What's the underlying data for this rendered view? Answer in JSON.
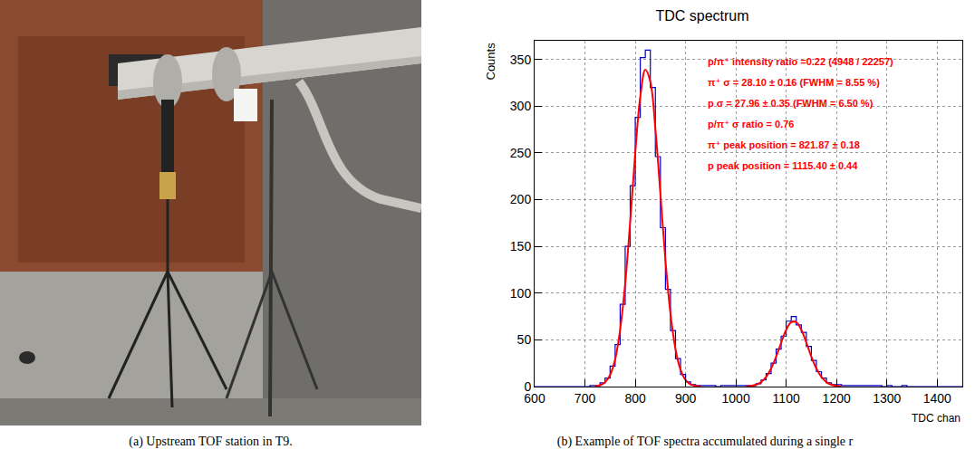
{
  "captions": [
    "(a) Upstream TOF station in T9.",
    "(b) Example of TOF spectra accumulated during a single r"
  ],
  "chart_data": {
    "type": "histogram",
    "title": "TDC spectrum",
    "x_label": "TDC chan",
    "y_label": "Counts",
    "bins": [
      600,
      610,
      620,
      630,
      640,
      650,
      660,
      670,
      680,
      690,
      700,
      710,
      720,
      730,
      740,
      750,
      760,
      770,
      780,
      790,
      800,
      810,
      820,
      830,
      840,
      850,
      860,
      870,
      880,
      890,
      900,
      910,
      920,
      930,
      940,
      950,
      960,
      970,
      980,
      990,
      1000,
      1010,
      1020,
      1030,
      1040,
      1050,
      1060,
      1070,
      1080,
      1090,
      1100,
      1110,
      1120,
      1130,
      1140,
      1150,
      1160,
      1170,
      1180,
      1190,
      1200,
      1210,
      1220,
      1230,
      1240,
      1250,
      1260,
      1270,
      1280,
      1290,
      1300,
      1310,
      1320,
      1330,
      1340,
      1350,
      1360,
      1370,
      1380,
      1390,
      1400,
      1410,
      1420,
      1430,
      1440,
      1450
    ],
    "values": [
      0,
      0,
      0,
      0,
      0,
      0,
      0,
      0,
      0,
      0,
      0,
      1,
      1,
      4,
      9,
      22,
      45,
      88,
      150,
      215,
      288,
      352,
      360,
      320,
      246,
      170,
      104,
      60,
      30,
      13,
      5,
      2,
      1,
      1,
      1,
      1,
      0,
      1,
      1,
      1,
      1,
      1,
      1,
      1,
      3,
      7,
      14,
      25,
      40,
      54,
      70,
      75,
      66,
      58,
      43,
      28,
      16,
      9,
      4,
      2,
      2,
      1,
      1,
      1,
      1,
      1,
      1,
      1,
      1,
      0,
      1,
      0,
      0,
      1,
      0,
      0,
      0,
      0,
      0,
      0,
      0,
      0,
      0,
      0,
      0
    ],
    "color": "#0000cc",
    "fits": [
      {
        "x": [
          720,
          730,
          740,
          750,
          760,
          770,
          780,
          790,
          800,
          810,
          820,
          830,
          840,
          850,
          860,
          870,
          880,
          890,
          900,
          910,
          920,
          930
        ],
        "values": [
          0.4,
          1.5,
          4.7,
          12.4,
          29,
          61,
          110,
          177,
          250,
          310,
          339,
          326,
          276,
          206,
          135,
          78,
          40,
          18,
          7,
          2.4,
          0.7,
          0.2
        ],
        "color": "#ff0000",
        "type": "line"
      },
      {
        "x": [
          1020,
          1030,
          1040,
          1050,
          1060,
          1070,
          1080,
          1090,
          1100,
          1110,
          1120,
          1130,
          1140,
          1150,
          1160,
          1170,
          1180,
          1190,
          1200,
          1210
        ],
        "values": [
          0.2,
          0.7,
          1.9,
          4.7,
          10.2,
          19.3,
          32,
          47,
          60.7,
          68.9,
          68.9,
          60.7,
          47,
          32,
          19.3,
          10.2,
          4.7,
          1.9,
          0.7,
          0.2
        ],
        "color": "#ff0000",
        "type": "line"
      }
    ],
    "annotations": {
      "texts": [
        "p/π⁺ intensity ratio =0.22 (4948 / 22257)",
        "π⁺ σ = 28.10 ± 0.16 (FWHM = 8.55 %)",
        "p σ = 27.96 ± 0.35 (FWHM = 6.50 %)",
        "p/π⁺ σ ratio = 0.76",
        "π⁺ peak position = 821.87 ± 0.18",
        "p peak position = 1115.40 ± 0.44"
      ],
      "color": "#ff0000"
    },
    "xlim": [
      600,
      1450
    ],
    "xticks": [
      600,
      700,
      800,
      900,
      1000,
      1100,
      1200,
      1300,
      1400
    ],
    "ylim": [
      0,
      370
    ],
    "yticks": [
      0,
      50,
      100,
      150,
      200,
      250,
      300,
      350
    ],
    "grid": true
  }
}
